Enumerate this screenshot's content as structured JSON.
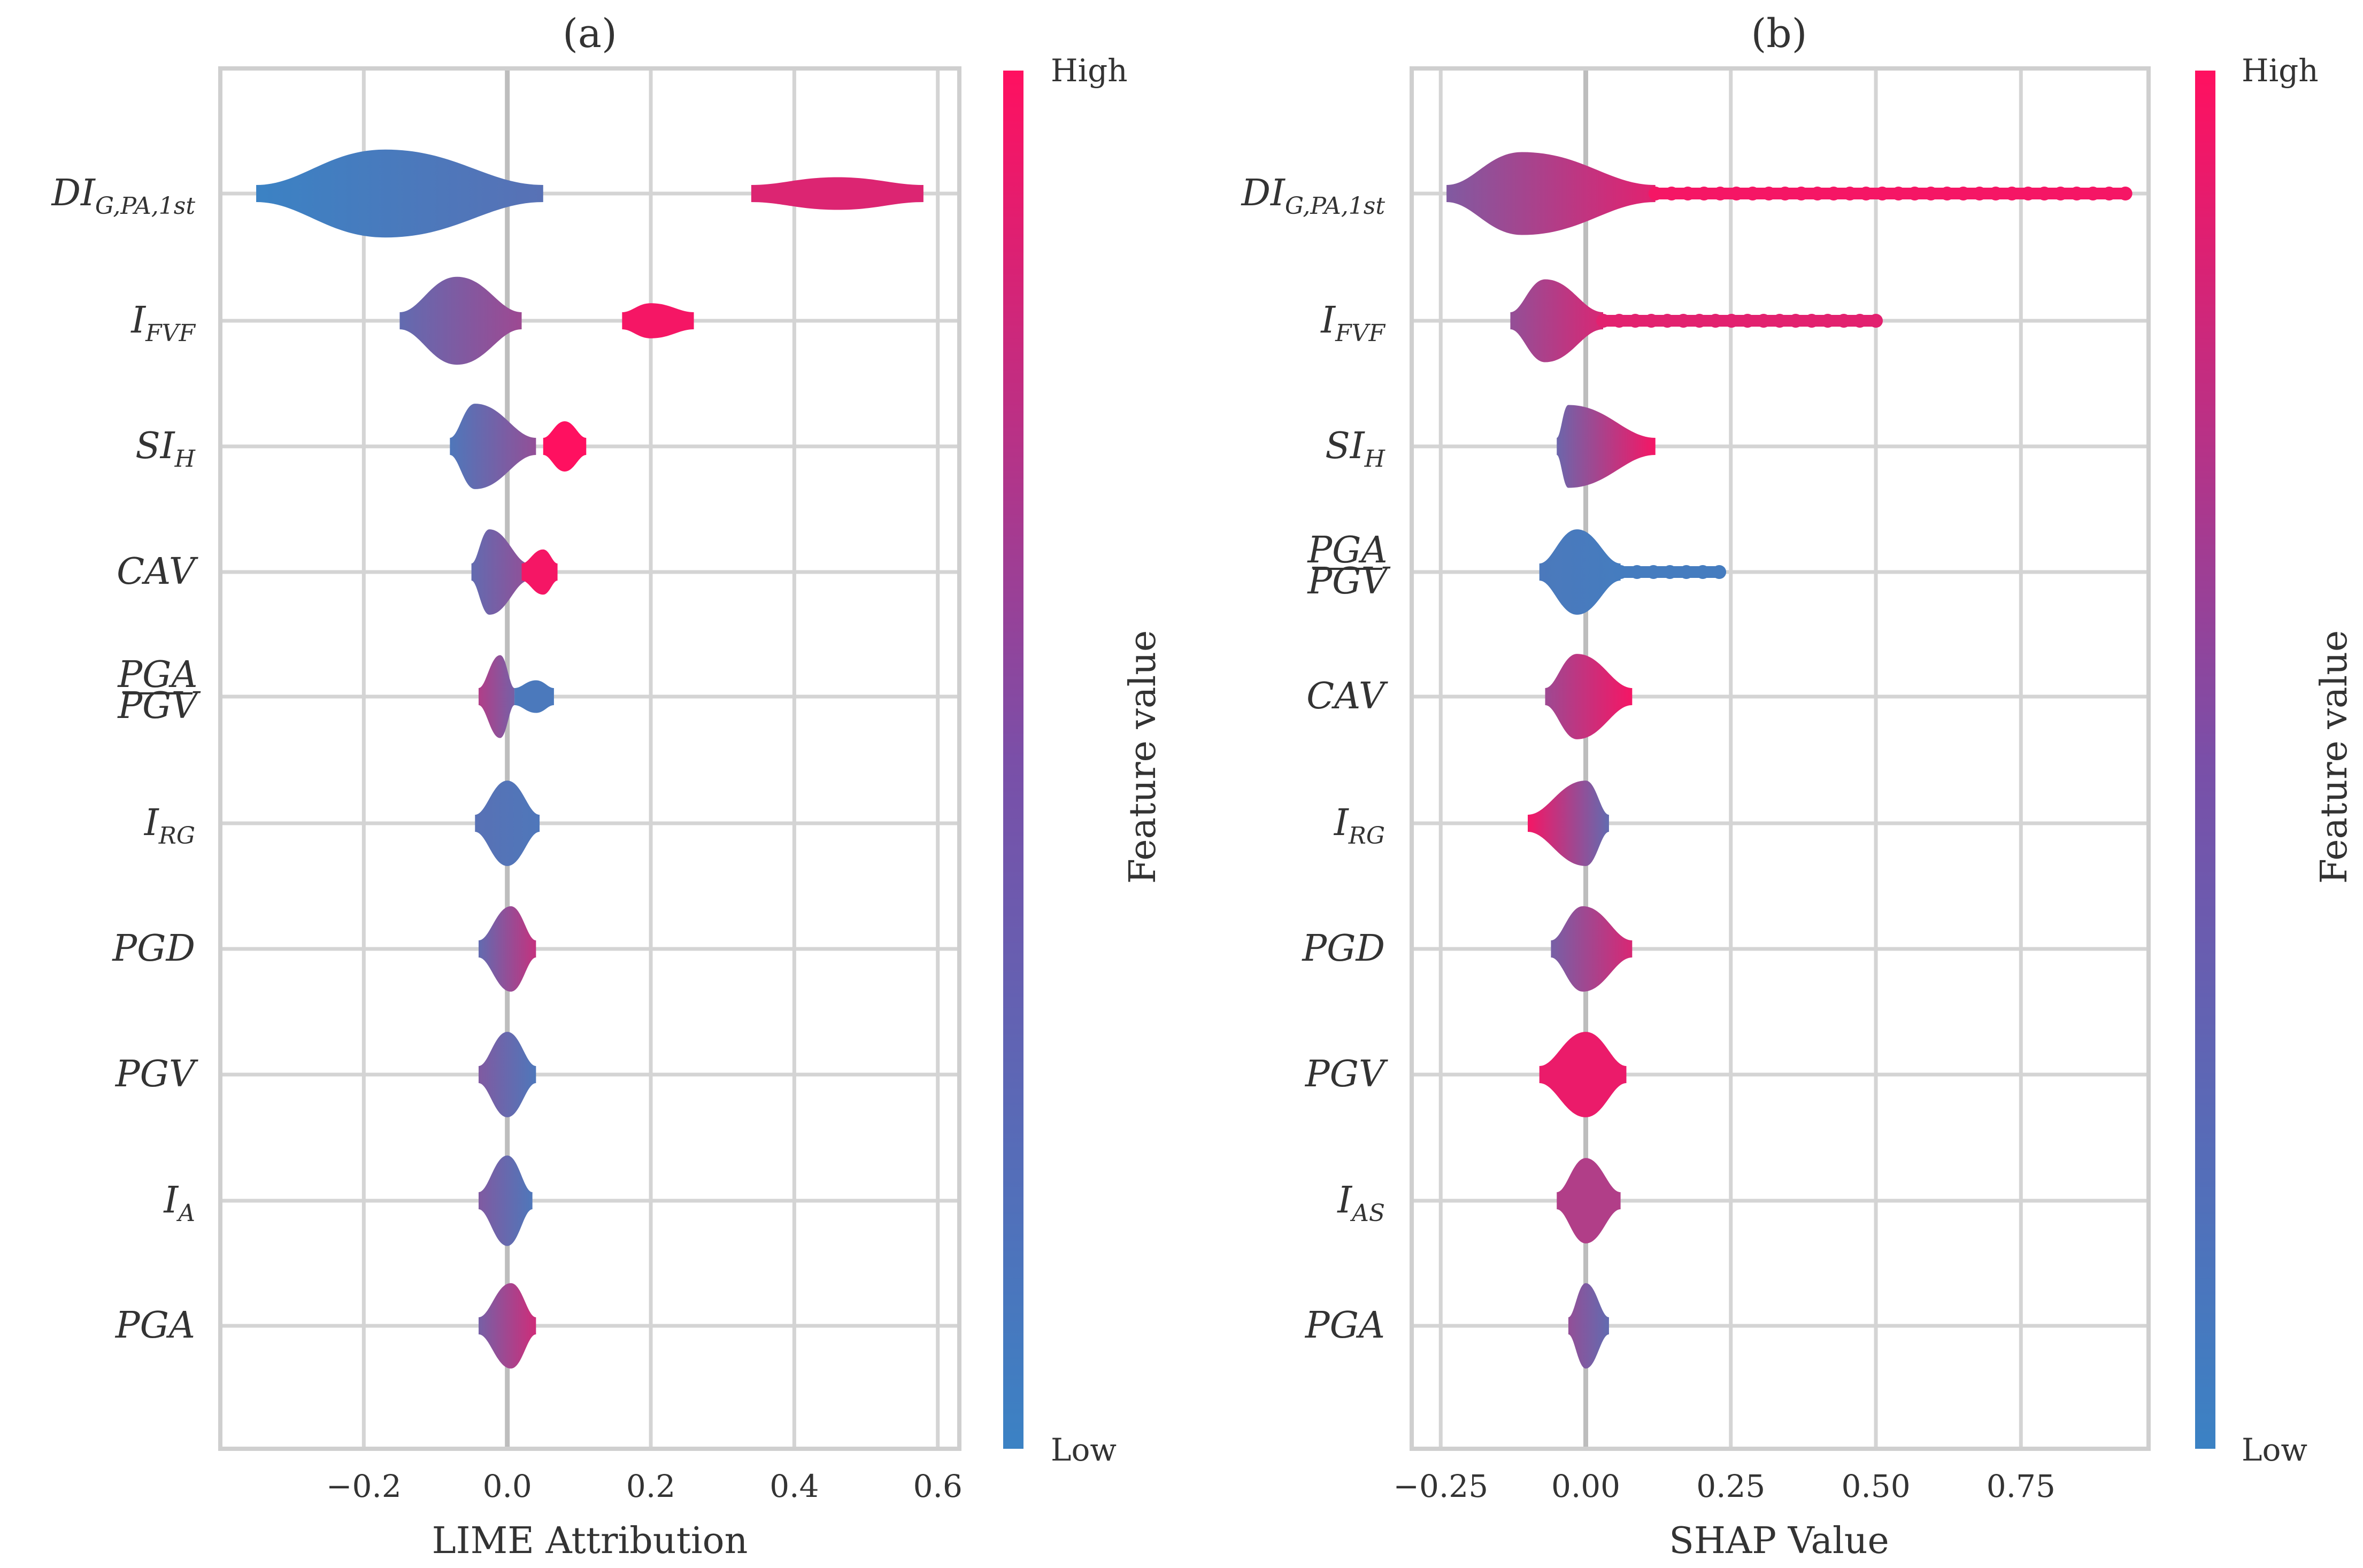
{
  "colors": {
    "low": "#3b82c4",
    "high": "#ff1060",
    "grid": "#d4d4d4",
    "text": "#333333"
  },
  "colorbar": {
    "high_label": "High",
    "low_label": "Low",
    "title": "Feature value"
  },
  "chart_data": [
    {
      "type": "violin",
      "title": "(a)",
      "xlabel": "LIME Attribution",
      "xlim": [
        -0.4,
        0.63
      ],
      "xticks": [
        -0.2,
        0.0,
        0.2,
        0.4,
        0.6
      ],
      "xtick_labels": [
        "−0.2",
        "0.0",
        "0.2",
        "0.4",
        "0.6"
      ],
      "features": [
        {
          "name": "DI",
          "sub": "G,PA,1st",
          "frac": false,
          "clusters": [
            {
              "center": -0.17,
              "lo": -0.35,
              "hi": 0.05,
              "height": 0.35,
              "c1": 0.0,
              "c2": 0.15
            },
            {
              "center": 0.46,
              "lo": 0.34,
              "hi": 0.58,
              "height": 0.13,
              "c1": 0.82,
              "c2": 0.82
            }
          ]
        },
        {
          "name": "I",
          "sub": "FVF",
          "frac": false,
          "clusters": [
            {
              "center": -0.07,
              "lo": -0.15,
              "hi": 0.02,
              "height": 0.35,
              "c1": 0.2,
              "c2": 0.5
            },
            {
              "center": 0.2,
              "lo": 0.16,
              "hi": 0.26,
              "height": 0.14,
              "c1": 0.95,
              "c2": 0.95
            }
          ]
        },
        {
          "name": "SI",
          "sub": "H",
          "frac": false,
          "clusters": [
            {
              "center": -0.045,
              "lo": -0.08,
              "hi": 0.04,
              "height": 0.34,
              "c1": 0.1,
              "c2": 0.45
            },
            {
              "center": 0.08,
              "lo": 0.05,
              "hi": 0.11,
              "height": 0.2,
              "c1": 1.0,
              "c2": 1.0
            }
          ]
        },
        {
          "name": "CAV",
          "sub": "",
          "frac": false,
          "clusters": [
            {
              "center": -0.025,
              "lo": -0.05,
              "hi": 0.03,
              "height": 0.34,
              "c1": 0.2,
              "c2": 0.45
            },
            {
              "center": 0.05,
              "lo": 0.02,
              "hi": 0.07,
              "height": 0.18,
              "c1": 0.95,
              "c2": 0.95
            }
          ]
        },
        {
          "name": "PGA/PGV",
          "sub": "",
          "frac": true,
          "num": "PGA",
          "den": "PGV",
          "clusters": [
            {
              "center": -0.01,
              "lo": -0.04,
              "hi": 0.01,
              "height": 0.33,
              "c1": 0.6,
              "c2": 0.3
            },
            {
              "center": 0.04,
              "lo": 0.01,
              "hi": 0.065,
              "height": 0.13,
              "c1": 0.08,
              "c2": 0.08
            }
          ]
        },
        {
          "name": "I",
          "sub": "RG",
          "frac": false,
          "clusters": [
            {
              "center": 0.0,
              "lo": -0.045,
              "hi": 0.045,
              "height": 0.34,
              "c1": 0.15,
              "c2": 0.1
            }
          ]
        },
        {
          "name": "PGD",
          "sub": "",
          "frac": false,
          "clusters": [
            {
              "center": 0.005,
              "lo": -0.04,
              "hi": 0.04,
              "height": 0.34,
              "c1": 0.2,
              "c2": 0.7
            }
          ]
        },
        {
          "name": "PGV",
          "sub": "",
          "frac": false,
          "clusters": [
            {
              "center": 0.0,
              "lo": -0.04,
              "hi": 0.04,
              "height": 0.34,
              "c1": 0.35,
              "c2": 0.1
            }
          ]
        },
        {
          "name": "I",
          "sub": "A",
          "frac": false,
          "clusters": [
            {
              "center": 0.0,
              "lo": -0.04,
              "hi": 0.035,
              "height": 0.36,
              "c1": 0.35,
              "c2": 0.1
            }
          ]
        },
        {
          "name": "PGA",
          "sub": "",
          "frac": false,
          "clusters": [
            {
              "center": 0.005,
              "lo": -0.04,
              "hi": 0.04,
              "height": 0.34,
              "c1": 0.3,
              "c2": 0.75
            }
          ]
        }
      ]
    },
    {
      "type": "beeswarm",
      "title": "(b)",
      "xlabel": "SHAP Value",
      "xlim": [
        -0.3,
        0.97
      ],
      "xticks": [
        -0.25,
        0.0,
        0.25,
        0.5,
        0.75
      ],
      "xtick_labels": [
        "−0.25",
        "0.00",
        "0.25",
        "0.50",
        "0.75"
      ],
      "features": [
        {
          "name": "DI",
          "sub": "G,PA,1st",
          "frac": false,
          "clusters": [
            {
              "center": -0.11,
              "lo": -0.24,
              "hi": 0.12,
              "height": 0.33,
              "c1": 0.35,
              "c2": 0.85
            }
          ],
          "tail": {
            "from": 0.12,
            "to": 0.93,
            "c": 0.95
          }
        },
        {
          "name": "I",
          "sub": "FVF",
          "frac": false,
          "clusters": [
            {
              "center": -0.07,
              "lo": -0.13,
              "hi": 0.03,
              "height": 0.33,
              "c1": 0.45,
              "c2": 0.8
            }
          ],
          "tail": {
            "from": 0.03,
            "to": 0.5,
            "c": 0.85
          }
        },
        {
          "name": "SI",
          "sub": "H",
          "frac": false,
          "clusters": [
            {
              "center": -0.03,
              "lo": -0.05,
              "hi": 0.12,
              "height": 0.33,
              "c1": 0.25,
              "c2": 0.95
            }
          ],
          "tail": null
        },
        {
          "name": "PGA/PGV",
          "sub": "",
          "frac": true,
          "num": "PGA",
          "den": "PGV",
          "clusters": [
            {
              "center": -0.015,
              "lo": -0.08,
              "hi": 0.06,
              "height": 0.34,
              "c1": 0.08,
              "c2": 0.05
            }
          ],
          "tail": {
            "from": 0.06,
            "to": 0.23,
            "c": 0.05
          }
        },
        {
          "name": "CAV",
          "sub": "",
          "frac": false,
          "clusters": [
            {
              "center": -0.015,
              "lo": -0.07,
              "hi": 0.08,
              "height": 0.34,
              "c1": 0.5,
              "c2": 0.95
            }
          ],
          "tail": null
        },
        {
          "name": "I",
          "sub": "RG",
          "frac": false,
          "clusters": [
            {
              "center": 0.0,
              "lo": -0.1,
              "hi": 0.04,
              "height": 0.34,
              "c1": 0.95,
              "c2": 0.2
            }
          ],
          "tail": null
        },
        {
          "name": "PGD",
          "sub": "",
          "frac": false,
          "clusters": [
            {
              "center": -0.005,
              "lo": -0.06,
              "hi": 0.08,
              "height": 0.34,
              "c1": 0.3,
              "c2": 0.8
            }
          ],
          "tail": null
        },
        {
          "name": "PGV",
          "sub": "",
          "frac": false,
          "clusters": [
            {
              "center": 0.0,
              "lo": -0.08,
              "hi": 0.07,
              "height": 0.34,
              "c1": 0.9,
              "c2": 0.9
            }
          ],
          "tail": null
        },
        {
          "name": "I",
          "sub": "AS",
          "frac": false,
          "clusters": [
            {
              "center": 0.0,
              "lo": -0.05,
              "hi": 0.06,
              "height": 0.34,
              "c1": 0.6,
              "c2": 0.6
            }
          ],
          "tail": null
        },
        {
          "name": "PGA",
          "sub": "",
          "frac": false,
          "clusters": [
            {
              "center": 0.0,
              "lo": -0.03,
              "hi": 0.04,
              "height": 0.34,
              "c1": 0.45,
              "c2": 0.2
            }
          ],
          "tail": null
        }
      ]
    }
  ]
}
